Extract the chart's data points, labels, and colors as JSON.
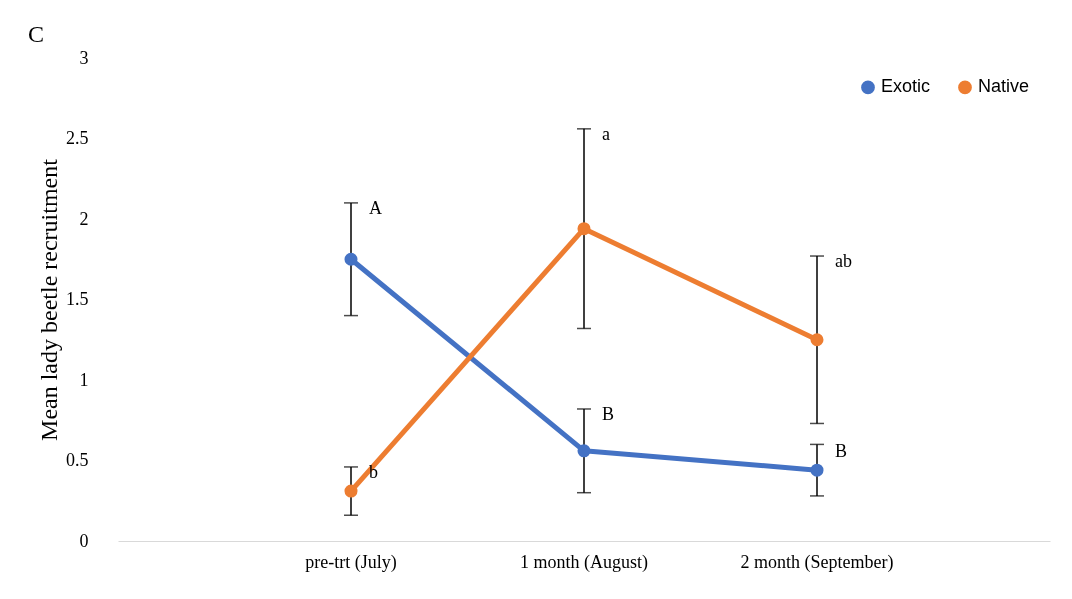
{
  "chart_data": {
    "type": "line",
    "title": "C",
    "ylabel": "Mean lady beetle recruitment",
    "categories": [
      "pre-trt (July)",
      "1 month (August)",
      "2 month (September)"
    ],
    "series": [
      {
        "name": "Exotic",
        "color": "#4472c4",
        "values": [
          1.75,
          0.56,
          0.44
        ],
        "errors": [
          0.35,
          0.26,
          0.16
        ]
      },
      {
        "name": "Native",
        "color": "#ed7d31",
        "values": [
          0.31,
          1.94,
          1.25
        ],
        "errors": [
          0.15,
          0.62,
          0.52
        ]
      }
    ],
    "ylim": [
      0,
      3
    ],
    "yticks": [
      0,
      0.5,
      1,
      1.5,
      2,
      2.5,
      3
    ],
    "grid": false,
    "legend": "top right",
    "marker": "circle",
    "line_style": "solid",
    "annotations": [
      {
        "text": "A",
        "x": "pre-trt (July)",
        "y": 2.1
      },
      {
        "text": "b",
        "x": "pre-trt (July)",
        "y": 0.46
      },
      {
        "text": "a",
        "x": "1 month (August)",
        "y": 2.56
      },
      {
        "text": "B",
        "x": "1 month (August)",
        "y": 0.82
      },
      {
        "text": "ab",
        "x": "2 month (September)",
        "y": 1.77
      },
      {
        "text": "B",
        "x": "2 month (September)",
        "y": 0.59
      }
    ]
  }
}
